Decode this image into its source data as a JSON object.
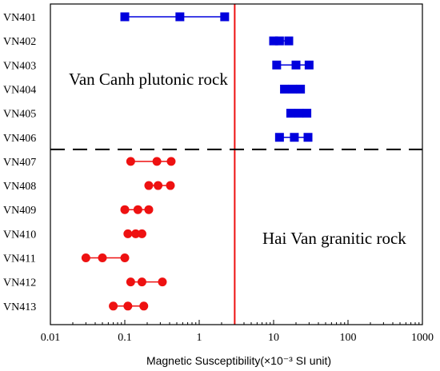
{
  "chart_data": {
    "type": "scatter",
    "x_scale": "log",
    "xlim": [
      0.01,
      1000
    ],
    "xticks": [
      0.01,
      0.1,
      1,
      10,
      100,
      1000
    ],
    "xtick_labels": [
      "0.01",
      "0.1",
      "1",
      "10",
      "100",
      "1000"
    ],
    "xlabel": "Magnetic Susceptibility(×10⁻³ SI unit)",
    "categories": [
      "VN401",
      "VN402",
      "VN403",
      "VN404",
      "VN405",
      "VN406",
      "VN407",
      "VN408",
      "VN409",
      "VN410",
      "VN411",
      "VN412",
      "VN413"
    ],
    "series": [
      {
        "group": "upper",
        "marker": "square",
        "color": "#0000dd",
        "points": [
          {
            "category": "VN401",
            "x": [
              0.1,
              0.55,
              2.2
            ]
          },
          {
            "category": "VN402",
            "x": [
              10,
              12,
              16
            ]
          },
          {
            "category": "VN403",
            "x": [
              11,
              20,
              30
            ]
          },
          {
            "category": "VN404",
            "x": [
              14,
              18,
              23
            ]
          },
          {
            "category": "VN405",
            "x": [
              17,
              22,
              28
            ]
          },
          {
            "category": "VN406",
            "x": [
              12,
              19,
              29
            ]
          }
        ]
      },
      {
        "group": "lower",
        "marker": "circle",
        "color": "#ee1111",
        "points": [
          {
            "category": "VN407",
            "x": [
              0.12,
              0.27,
              0.42
            ]
          },
          {
            "category": "VN408",
            "x": [
              0.21,
              0.28,
              0.41
            ]
          },
          {
            "category": "VN409",
            "x": [
              0.1,
              0.15,
              0.21
            ]
          },
          {
            "category": "VN410",
            "x": [
              0.11,
              0.14,
              0.17
            ]
          },
          {
            "category": "VN411",
            "x": [
              0.03,
              0.05,
              0.1
            ]
          },
          {
            "category": "VN412",
            "x": [
              0.12,
              0.17,
              0.32
            ]
          },
          {
            "category": "VN413",
            "x": [
              0.07,
              0.11,
              0.18
            ]
          }
        ]
      }
    ],
    "reference_line": {
      "x": 3,
      "color": "#ee1111"
    },
    "separator": {
      "between": [
        "VN406",
        "VN407"
      ],
      "style": "dashed",
      "color": "#000000"
    },
    "annotations": [
      {
        "text": "Van Canh plutonic rock",
        "region": "upper-left"
      },
      {
        "text": "Hai Van granitic rock",
        "region": "lower-right"
      }
    ]
  }
}
